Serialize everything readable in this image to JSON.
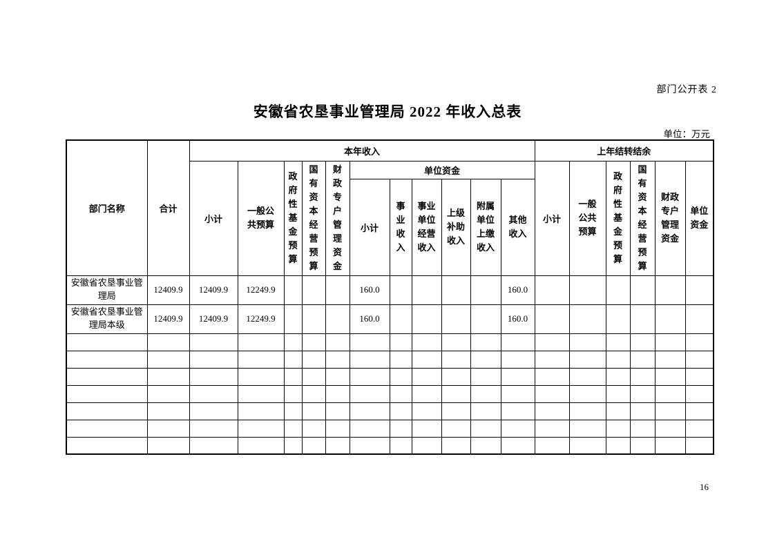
{
  "page": {
    "doc_label": "部门公开表 2",
    "title": "安徽省农垦事业管理局 2022 年收入总表",
    "unit_note": "单位：万元",
    "page_number": "16"
  },
  "table": {
    "header": {
      "dept_name": "部门名称",
      "total": "合计",
      "current_year_group": "本年收入",
      "carryover_group": "上年结转结余",
      "cy_subtotal": "小计",
      "cy_general_public_budget": "一般公共预算",
      "cy_gov_fund_budget": "政府性基金预算",
      "cy_state_capital_budget": "国有资本经营预算",
      "cy_fiscal_special_account": "财政专户管理资金",
      "unit_funds_group": "单位资金",
      "uf_subtotal": "小计",
      "uf_business_income": "事业收入",
      "uf_operating_income": "事业单位经营收入",
      "uf_superior_subsidy_income": "上级补助收入",
      "uf_affiliated_remitted_income": "附属单位上缴收入",
      "uf_other_income": "其他收入",
      "co_subtotal": "小计",
      "co_general_public_budget": "一般公共预算",
      "co_gov_fund_budget": "政府性基金预算",
      "co_state_capital_budget": "国有资本经营预算",
      "co_fiscal_special_account": "财政专户管理资金",
      "co_unit_funds": "单位资金"
    },
    "rows": [
      {
        "cells": [
          "安徽省农垦事业管理局",
          "12409.9",
          "12409.9",
          "12249.9",
          "",
          "",
          "",
          "160.0",
          "",
          "",
          "",
          "",
          "160.0",
          "",
          "",
          "",
          "",
          "",
          ""
        ]
      },
      {
        "cells": [
          "安徽省农垦事业管理局本级",
          "12409.9",
          "12409.9",
          "12249.9",
          "",
          "",
          "",
          "160.0",
          "",
          "",
          "",
          "",
          "160.0",
          "",
          "",
          "",
          "",
          "",
          ""
        ]
      }
    ],
    "empty_row_count": 7,
    "column_count": 19
  }
}
